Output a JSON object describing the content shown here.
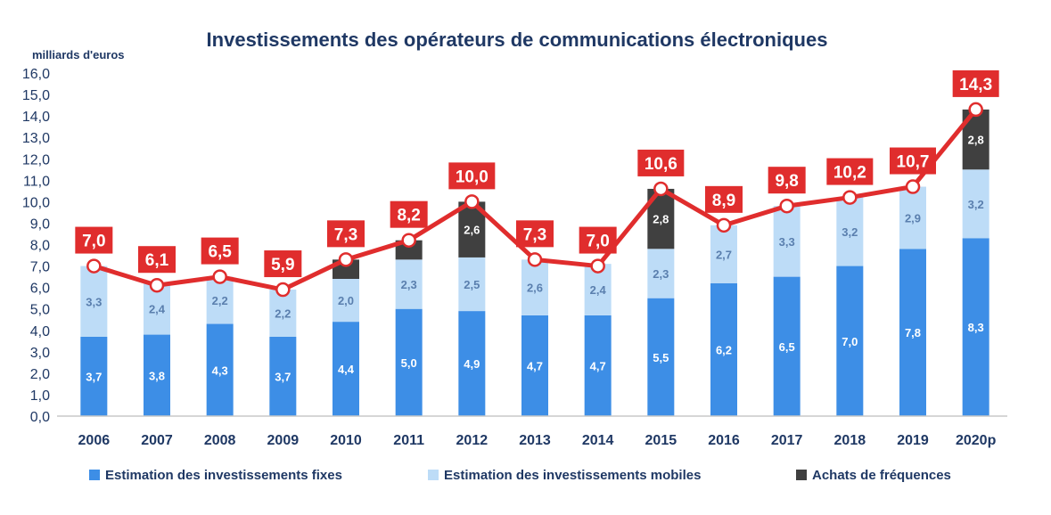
{
  "chart_data": {
    "type": "bar",
    "stacked": true,
    "title": "Investissements des opérateurs de communications électroniques",
    "unit_label": "milliards d'euros",
    "categories": [
      "2006",
      "2007",
      "2008",
      "2009",
      "2010",
      "2011",
      "2012",
      "2013",
      "2014",
      "2015",
      "2016",
      "2017",
      "2018",
      "2019",
      "2020p"
    ],
    "ylim": [
      0,
      16
    ],
    "yticks": [
      "0,0",
      "1,0",
      "2,0",
      "3,0",
      "4,0",
      "5,0",
      "6,0",
      "7,0",
      "8,0",
      "9,0",
      "10,0",
      "11,0",
      "12,0",
      "13,0",
      "14,0",
      "15,0",
      "16,0"
    ],
    "grid": false,
    "legend_position": "bottom",
    "series": [
      {
        "name": "Estimation des investissements fixes",
        "color": "#3d8ee6",
        "values": [
          3.7,
          3.8,
          4.3,
          3.7,
          4.4,
          5.0,
          4.9,
          4.7,
          4.7,
          5.5,
          6.2,
          6.5,
          7.0,
          7.8,
          8.3
        ],
        "labels": [
          "3,7",
          "3,8",
          "4,3",
          "3,7",
          "4,4",
          "5,0",
          "4,9",
          "4,7",
          "4,7",
          "5,5",
          "6,2",
          "6,5",
          "7,0",
          "7,8",
          "8,3"
        ]
      },
      {
        "name": "Estimation des investissements  mobiles",
        "color": "#bddcf7",
        "values": [
          3.3,
          2.4,
          2.2,
          2.2,
          2.0,
          2.3,
          2.5,
          2.6,
          2.4,
          2.3,
          2.7,
          3.3,
          3.2,
          2.9,
          3.2
        ],
        "labels": [
          "3,3",
          "2,4",
          "2,2",
          "2,2",
          "2,0",
          "2,3",
          "2,5",
          "2,6",
          "2,4",
          "2,3",
          "2,7",
          "3,3",
          "3,2",
          "2,9",
          "3,2"
        ]
      },
      {
        "name": "Achats de fréquences",
        "color": "#404040",
        "values": [
          0,
          0,
          0,
          0,
          0.9,
          0.9,
          2.6,
          0,
          0,
          2.8,
          0,
          0,
          0,
          0,
          2.8
        ],
        "labels": [
          "",
          "",
          "",
          "",
          "",
          "",
          "2,6",
          "",
          "",
          "2,8",
          "",
          "",
          "",
          "",
          "2,8"
        ]
      }
    ],
    "total": {
      "color": "#e02d2d",
      "values": [
        7.0,
        6.1,
        6.5,
        5.9,
        7.3,
        8.2,
        10.0,
        7.3,
        7.0,
        10.6,
        8.9,
        9.8,
        10.2,
        10.7,
        14.3
      ],
      "labels": [
        "7,0",
        "6,1",
        "6,5",
        "5,9",
        "7,3",
        "8,2",
        "10,0",
        "7,3",
        "7,0",
        "10,6",
        "8,9",
        "9,8",
        "10,2",
        "10,7",
        "14,3"
      ]
    }
  }
}
